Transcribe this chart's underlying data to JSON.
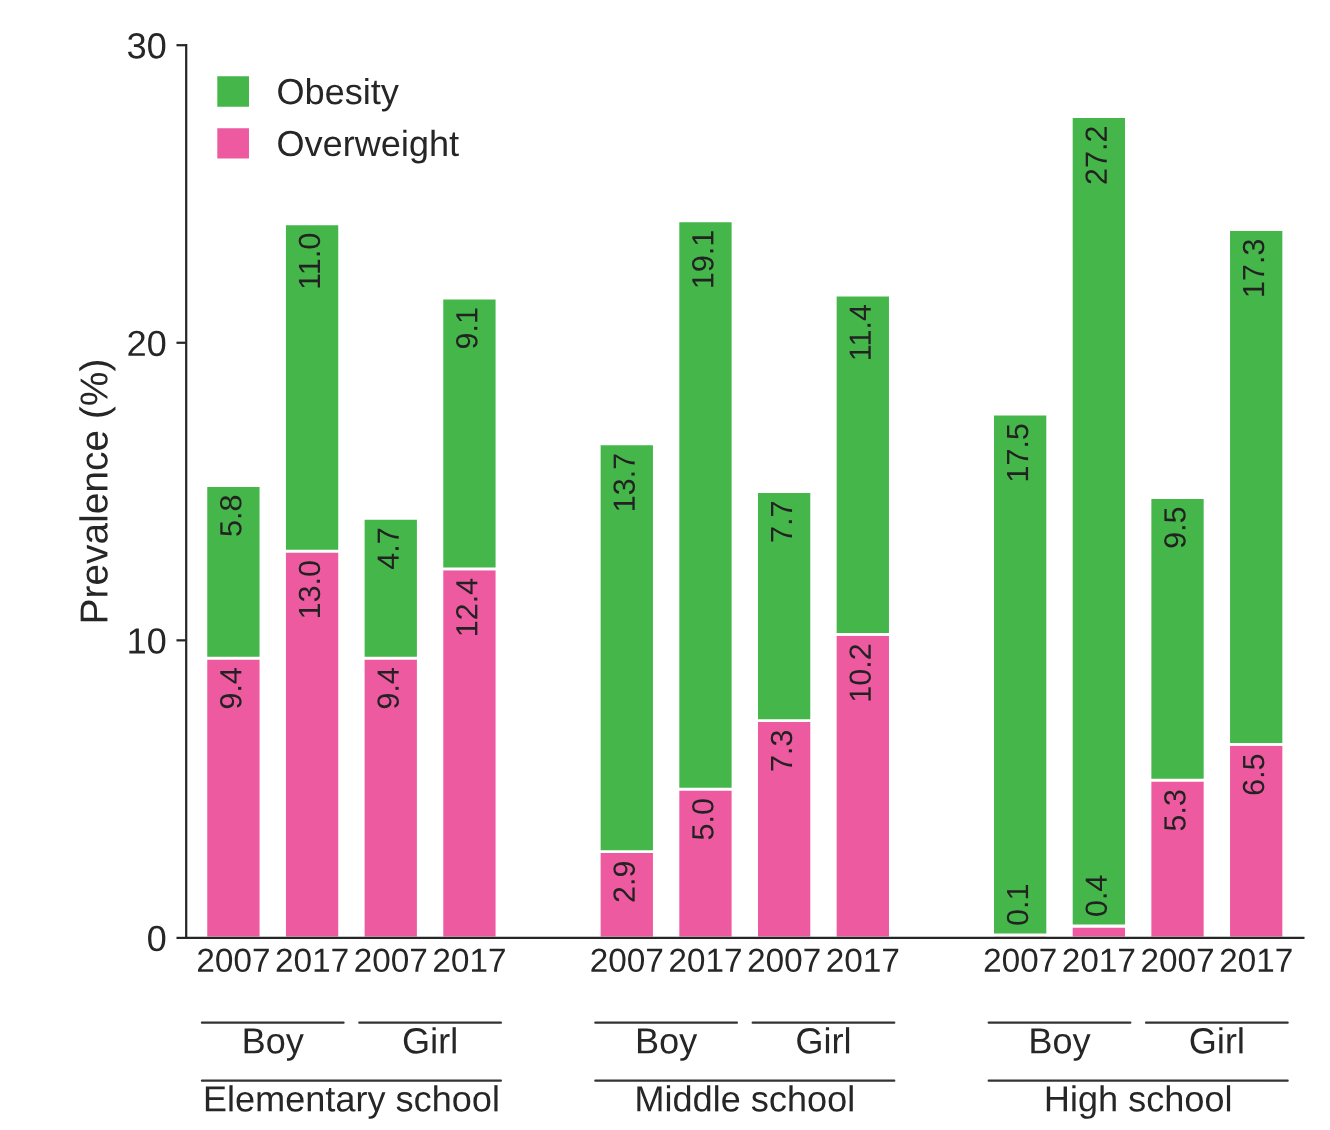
{
  "chart_data": {
    "type": "bar",
    "stacked": true,
    "ylabel": "Prevalence (%)",
    "categories": [
      "2007",
      "2017",
      "2007",
      "2017",
      null,
      "2007",
      "2017",
      "2007",
      "2017",
      null,
      "2007",
      "2017",
      "2007",
      "2017"
    ],
    "series": [
      {
        "name": "Overweight",
        "color": "#ee5a9f",
        "values": [
          9.4,
          13.0,
          9.4,
          12.4,
          null,
          2.9,
          5.0,
          7.3,
          10.2,
          null,
          0.1,
          0.4,
          5.3,
          6.5
        ],
        "value_labels": [
          "9.4",
          "13.0",
          "9.4",
          "12.4",
          null,
          "2.9",
          "5.0",
          "7.3",
          "10.2",
          null,
          "0.1",
          "0.4",
          "5.3",
          "6.5"
        ]
      },
      {
        "name": "Obesity",
        "color": "#45b649",
        "values": [
          5.8,
          11.0,
          4.7,
          9.1,
          null,
          13.7,
          19.1,
          7.7,
          11.4,
          null,
          17.5,
          27.2,
          9.5,
          17.3
        ],
        "value_labels": [
          "5.8",
          "11.0",
          "4.7",
          "9.1",
          null,
          "13.7",
          "19.1",
          "7.7",
          "11.4",
          null,
          "17.5",
          "27.2",
          "9.5",
          "17.3"
        ]
      }
    ],
    "annotations": [
      "Boy",
      "Girl",
      "Boy",
      "Girl",
      "Boy",
      "Girl",
      "Elementary school",
      "Middle school",
      "High school"
    ],
    "ylim": [
      0,
      30
    ],
    "yticks": [
      0,
      10,
      20,
      30
    ],
    "grid": false,
    "legend": "top left"
  }
}
